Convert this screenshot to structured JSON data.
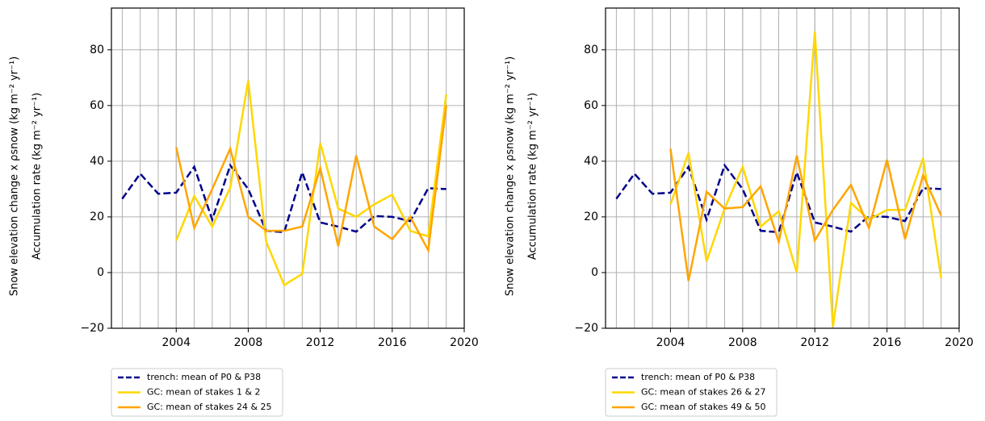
{
  "chart_data": [
    {
      "type": "line",
      "ylabel_top": "Snow elevation change x ρsnow (kg m⁻² yr⁻¹)",
      "ylabel_top_color": "#ffc000",
      "ylabel_bottom": "Accumulation rate (kg m⁻² yr⁻¹)",
      "ylabel_bottom_color": "#00008b",
      "xlim": [
        2000.4,
        2020
      ],
      "ylim": [
        -20,
        95
      ],
      "xticks": [
        2004,
        2008,
        2012,
        2016,
        2020
      ],
      "x_grid": [
        2001,
        2002,
        2003,
        2004,
        2005,
        2006,
        2007,
        2008,
        2009,
        2010,
        2011,
        2012,
        2013,
        2014,
        2015,
        2016,
        2017,
        2018,
        2019
      ],
      "yticks": [
        {
          "value": -20,
          "label": "−20"
        },
        0,
        20,
        40,
        60,
        80
      ],
      "grid": true,
      "series": [
        {
          "name": "trench: mean of P0 & P38",
          "color": "#00008b",
          "linestyle": "dashed",
          "x": [
            2001,
            2002,
            2003,
            2004,
            2005,
            2006,
            2007,
            2008,
            2009,
            2010,
            2011,
            2012,
            2013,
            2014,
            2015,
            2016,
            2017,
            2018,
            2019
          ],
          "values": [
            26.5,
            35.5,
            28.3,
            28.7,
            38,
            19,
            38.5,
            30,
            15,
            14.5,
            36,
            18,
            16.5,
            14.7,
            20.3,
            20,
            18.5,
            30.3,
            30
          ]
        },
        {
          "name": "GC: mean of stakes 1 & 2",
          "color": "#ffd700",
          "linestyle": "solid",
          "x": [
            2004,
            2005,
            2006,
            2007,
            2008,
            2009,
            2010,
            2011,
            2012,
            2013,
            2014,
            2015,
            2016,
            2017,
            2018,
            2019
          ],
          "values": [
            11.5,
            27.5,
            16.5,
            30.5,
            69,
            11,
            -4.5,
            -0.5,
            46.5,
            23,
            20,
            24.5,
            28,
            15,
            13,
            64
          ]
        },
        {
          "name": "GC: mean of stakes 24 & 25",
          "color": "#ffa500",
          "linestyle": "solid",
          "x": [
            2004,
            2005,
            2006,
            2007,
            2008,
            2009,
            2010,
            2011,
            2012,
            2013,
            2014,
            2015,
            2016,
            2017,
            2018,
            2019
          ],
          "values": [
            45,
            16,
            30,
            44.5,
            20,
            15,
            15,
            16.5,
            37.5,
            9.5,
            42,
            16.5,
            12,
            20,
            8,
            60
          ]
        }
      ]
    },
    {
      "type": "line",
      "ylabel_top": "Snow elevation change x ρsnow (kg m⁻² yr⁻¹)",
      "ylabel_top_color": "#ffc000",
      "ylabel_bottom": "Accumulation rate (kg m⁻² yr⁻¹)",
      "ylabel_bottom_color": "#00008b",
      "xlim": [
        2000.4,
        2020
      ],
      "ylim": [
        -20,
        95
      ],
      "xticks": [
        2004,
        2008,
        2012,
        2016,
        2020
      ],
      "x_grid": [
        2001,
        2002,
        2003,
        2004,
        2005,
        2006,
        2007,
        2008,
        2009,
        2010,
        2011,
        2012,
        2013,
        2014,
        2015,
        2016,
        2017,
        2018,
        2019
      ],
      "yticks": [
        {
          "value": -20,
          "label": "−20"
        },
        0,
        20,
        40,
        60,
        80
      ],
      "grid": true,
      "series": [
        {
          "name": "trench: mean of P0 & P38",
          "color": "#00008b",
          "linestyle": "dashed",
          "x": [
            2001,
            2002,
            2003,
            2004,
            2005,
            2006,
            2007,
            2008,
            2009,
            2010,
            2011,
            2012,
            2013,
            2014,
            2015,
            2016,
            2017,
            2018,
            2019
          ],
          "values": [
            26.5,
            35.5,
            28.3,
            28.7,
            38,
            19,
            38.5,
            30,
            15,
            14.5,
            36,
            18,
            16.5,
            14.7,
            20.3,
            20,
            18.5,
            30.3,
            30
          ]
        },
        {
          "name": "GC: mean of stakes 26 & 27",
          "color": "#ffd700",
          "linestyle": "solid",
          "x": [
            2004,
            2005,
            2006,
            2007,
            2008,
            2009,
            2010,
            2011,
            2012,
            2013,
            2014,
            2015,
            2016,
            2017,
            2018,
            2019
          ],
          "values": [
            24.5,
            43,
            4,
            23,
            38,
            16.5,
            22,
            0,
            86.5,
            -19.5,
            25,
            19,
            22.5,
            22.5,
            41,
            -2
          ]
        },
        {
          "name": "GC: mean of stakes 49 & 50",
          "color": "#ffa500",
          "linestyle": "solid",
          "x": [
            2004,
            2005,
            2006,
            2007,
            2008,
            2009,
            2010,
            2011,
            2012,
            2013,
            2014,
            2015,
            2016,
            2017,
            2018,
            2019
          ],
          "values": [
            44.5,
            -3,
            29,
            23,
            23.5,
            31,
            11,
            42,
            11.5,
            22.5,
            31.5,
            16,
            40.5,
            12,
            35,
            20.5
          ]
        }
      ]
    }
  ]
}
